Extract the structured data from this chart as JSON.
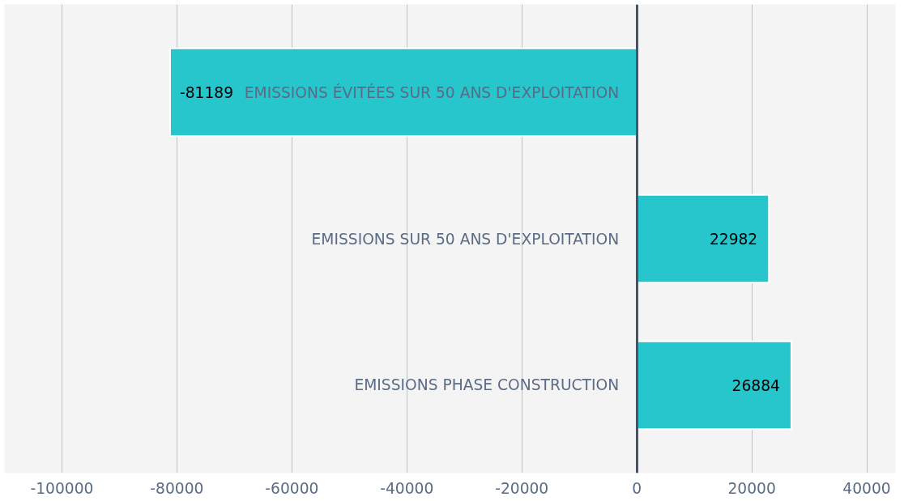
{
  "chart_data": {
    "type": "bar",
    "orientation": "horizontal",
    "categories": [
      "EMISSIONS ÉVITÉES SUR 50 ANS D'EXPLOITATION",
      "EMISSIONS SUR 50 ANS D'EXPLOITATION",
      "EMISSIONS PHASE CONSTRUCTION"
    ],
    "values": [
      -81189,
      22982,
      26884
    ],
    "color": "#26c6cc",
    "xlim": [
      -110000,
      45000
    ],
    "xticks": [
      -100000,
      -80000,
      -60000,
      -40000,
      -20000,
      0,
      20000,
      40000
    ],
    "grid": "x",
    "data_labels": true
  }
}
